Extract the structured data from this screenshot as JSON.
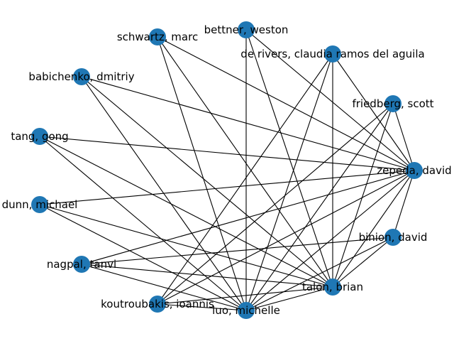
{
  "graph": {
    "node_color": "#1f77b4",
    "edge_color": "#000000",
    "nodes": [
      {
        "id": "bettner",
        "label": "bettner, weston"
      },
      {
        "id": "schwartz",
        "label": "schwartz, marc"
      },
      {
        "id": "derivers",
        "label": "de rivers, claudia ramos del aguila"
      },
      {
        "id": "babichenko",
        "label": "babichenko, dmitriy"
      },
      {
        "id": "friedberg",
        "label": "friedberg, scott"
      },
      {
        "id": "tang",
        "label": "tang, gong"
      },
      {
        "id": "zepeda",
        "label": "zepeda, david"
      },
      {
        "id": "dunn",
        "label": "dunn, michael"
      },
      {
        "id": "binion",
        "label": "binion, david"
      },
      {
        "id": "nagpal",
        "label": "nagpal, tanvi"
      },
      {
        "id": "talon",
        "label": "talon, brian"
      },
      {
        "id": "koutroubakis",
        "label": "koutroubakis, ioannis"
      },
      {
        "id": "luo",
        "label": "luo, michelle"
      }
    ],
    "edges": [
      [
        "bettner",
        "luo"
      ],
      [
        "bettner",
        "talon"
      ],
      [
        "bettner",
        "zepeda"
      ],
      [
        "schwartz",
        "luo"
      ],
      [
        "schwartz",
        "talon"
      ],
      [
        "schwartz",
        "zepeda"
      ],
      [
        "derivers",
        "luo"
      ],
      [
        "derivers",
        "talon"
      ],
      [
        "derivers",
        "koutroubakis"
      ],
      [
        "derivers",
        "zepeda"
      ],
      [
        "babichenko",
        "luo"
      ],
      [
        "babichenko",
        "talon"
      ],
      [
        "babichenko",
        "zepeda"
      ],
      [
        "friedberg",
        "luo"
      ],
      [
        "friedberg",
        "talon"
      ],
      [
        "friedberg",
        "zepeda"
      ],
      [
        "friedberg",
        "koutroubakis"
      ],
      [
        "tang",
        "luo"
      ],
      [
        "tang",
        "talon"
      ],
      [
        "tang",
        "zepeda"
      ],
      [
        "dunn",
        "luo"
      ],
      [
        "dunn",
        "talon"
      ],
      [
        "dunn",
        "zepeda"
      ],
      [
        "zepeda",
        "luo"
      ],
      [
        "zepeda",
        "talon"
      ],
      [
        "zepeda",
        "binion"
      ],
      [
        "zepeda",
        "nagpal"
      ],
      [
        "zepeda",
        "koutroubakis"
      ],
      [
        "binion",
        "luo"
      ],
      [
        "binion",
        "talon"
      ],
      [
        "binion",
        "nagpal"
      ],
      [
        "nagpal",
        "luo"
      ],
      [
        "nagpal",
        "talon"
      ],
      [
        "koutroubakis",
        "luo"
      ],
      [
        "koutroubakis",
        "talon"
      ],
      [
        "luo",
        "talon"
      ]
    ]
  }
}
